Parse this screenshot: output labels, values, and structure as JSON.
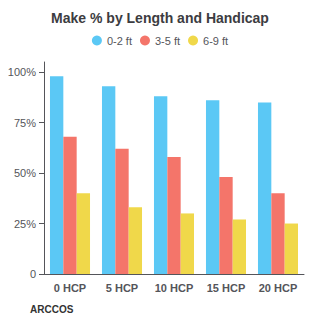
{
  "chart_data": {
    "type": "bar",
    "title": "Make % by Length and Handicap",
    "categories": [
      "0 HCP",
      "5 HCP",
      "10 HCP",
      "15 HCP",
      "20 HCP"
    ],
    "series": [
      {
        "name": "0-2 ft",
        "color": "#5BC8F5",
        "values": [
          98,
          93,
          88,
          86,
          85
        ]
      },
      {
        "name": "3-5 ft",
        "color": "#F4756A",
        "values": [
          68,
          62,
          58,
          48,
          40
        ]
      },
      {
        "name": "6-9 ft",
        "color": "#F0D84A",
        "values": [
          40,
          33,
          30,
          27,
          25
        ]
      }
    ],
    "ylim": [
      0,
      105
    ],
    "yticks": [
      0,
      {
        "value": 25,
        "label": "25%"
      },
      {
        "value": 50,
        "label": "50%"
      },
      {
        "value": 75,
        "label": "75%"
      },
      {
        "value": 100,
        "label": "100%"
      }
    ],
    "grid": false,
    "legend": "top",
    "annotations": [
      "ARCCOS"
    ]
  }
}
